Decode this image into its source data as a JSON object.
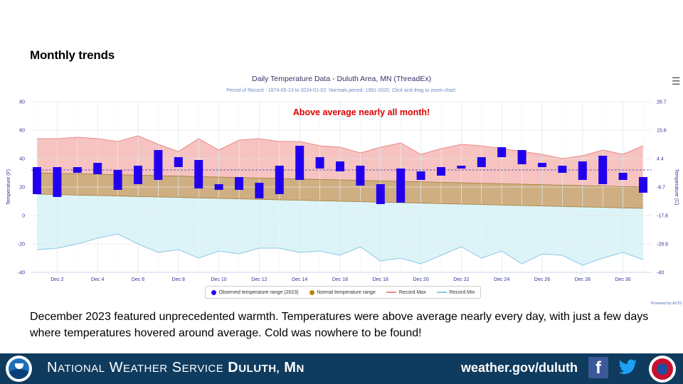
{
  "slide": {
    "heading": "Monthly trends",
    "body_text": "December 2023 featured unprecedented warmth. Temperatures were above average nearly every day, with just a few days where temperatures hovered around average. Cold was nowhere to be found!"
  },
  "chart": {
    "title": "Daily Temperature Data - Duluth Area, MN (ThreadEx)",
    "subtitle": "Period of Record - 1874-05-13 to 2024-01-02. Normals period: 1991-2020. Click and drag to zoom chart.",
    "annotation": "Above average nearly all month!",
    "credits": "Powered by ACIS",
    "menu_icon": "hamburger-menu-icon"
  },
  "chart_data": {
    "type": "bar",
    "title": "Daily Temperature Data - Duluth Area, MN (ThreadEx)",
    "ylabel": "Temperature (F)",
    "y2label": "Temperature (C)",
    "ylim": [
      -40,
      80
    ],
    "y_ticks": [
      "-40",
      "-20",
      "0",
      "20",
      "40",
      "60",
      "80"
    ],
    "y2_ticks": [
      "-40",
      "-28.9",
      "-17.8",
      "-6.7",
      "4.4",
      "15.6",
      "26.7"
    ],
    "x_ticks": [
      "Dec 2",
      "Dec 4",
      "Dec 6",
      "Dec 8",
      "Dec 10",
      "Dec 12",
      "Dec 14",
      "Dec 16",
      "Dec 18",
      "Dec 20",
      "Dec 22",
      "Dec 24",
      "Dec 26",
      "Dec 28",
      "Dec 30"
    ],
    "x_tick_days": [
      2,
      4,
      6,
      8,
      10,
      12,
      14,
      16,
      18,
      20,
      22,
      24,
      26,
      28,
      30
    ],
    "grid": true,
    "days": [
      1,
      2,
      3,
      4,
      5,
      6,
      7,
      8,
      9,
      10,
      11,
      12,
      13,
      14,
      15,
      16,
      17,
      18,
      19,
      20,
      21,
      22,
      23,
      24,
      25,
      26,
      27,
      28,
      29,
      30,
      31
    ],
    "observed_min": [
      15,
      13,
      30,
      29,
      18,
      22,
      25,
      34,
      19,
      18,
      18,
      12,
      15,
      25,
      33,
      31,
      21,
      8,
      9,
      25,
      28,
      33,
      34,
      41,
      36,
      34,
      30,
      25,
      22,
      25,
      16
    ],
    "observed_max": [
      34,
      34,
      34,
      37,
      32,
      35,
      46,
      41,
      39,
      22,
      27,
      23,
      35,
      49,
      41,
      38,
      35,
      22,
      33,
      31,
      34,
      35,
      41,
      48,
      46,
      37,
      35,
      38,
      42,
      30,
      27
    ],
    "normal_low": [
      15,
      14.7,
      14.3,
      14,
      13.7,
      13.3,
      13,
      12.7,
      12.3,
      12,
      11.7,
      11.3,
      11,
      10.7,
      10.3,
      10,
      9.7,
      9.3,
      9,
      8.7,
      8.3,
      8,
      7.7,
      7.3,
      7,
      6.7,
      6.3,
      6,
      5.7,
      5.3,
      5
    ],
    "normal_high": [
      30,
      29.7,
      29.3,
      29,
      28.7,
      28.3,
      28,
      27.7,
      27.3,
      27,
      26.7,
      26.3,
      26,
      25.7,
      25.3,
      25,
      24.7,
      24.3,
      24,
      23.7,
      23.3,
      23,
      22.7,
      22.3,
      22,
      21.7,
      21.3,
      21,
      20.7,
      20.3,
      20
    ],
    "mean_line": 32,
    "record_max": [
      54,
      54,
      55,
      54,
      52,
      56,
      50,
      45,
      54,
      46,
      53,
      54,
      52,
      52,
      49,
      48,
      44,
      48,
      51,
      43,
      47,
      50,
      49,
      47,
      45,
      43,
      40,
      42,
      46,
      43,
      49
    ],
    "record_min": [
      -24,
      -23,
      -20,
      -16,
      -13,
      -20,
      -26,
      -24,
      -30,
      -25,
      -27,
      -23,
      -23,
      -26,
      -25,
      -28,
      -22,
      -32,
      -30,
      -34,
      -28,
      -22,
      -30,
      -25,
      -34,
      -27,
      -28,
      -35,
      -30,
      -26,
      -31
    ],
    "legend": [
      {
        "label": "Observed temperature range (2023)",
        "color": "#2200ee"
      },
      {
        "label": "Normal temperature range",
        "color": "#b8860b"
      },
      {
        "label": "Record Max",
        "color": "#e98a8a"
      },
      {
        "label": "Record Min",
        "color": "#8fc6e6"
      }
    ],
    "colors": {
      "record_fill": "#f6c3c0",
      "record_line": "#e98a8a",
      "normal_fill": "#cfae82",
      "normal_line": "#a07a30",
      "cold_fill": "#dcf4f8",
      "cold_line": "#8fc6e6",
      "observed": "#2200ee",
      "mean_line": "#3333aa",
      "axis_text": "#333399",
      "annotation": "#dd0000"
    }
  },
  "footer": {
    "org_first": "National Weather Service",
    "org_place": "Duluth, MN",
    "website": "weather.gov/duluth",
    "facebook_icon": "facebook-icon",
    "twitter_icon": "twitter-icon",
    "noaa_logo": "noaa-logo",
    "nws_logo": "nws-logo"
  }
}
